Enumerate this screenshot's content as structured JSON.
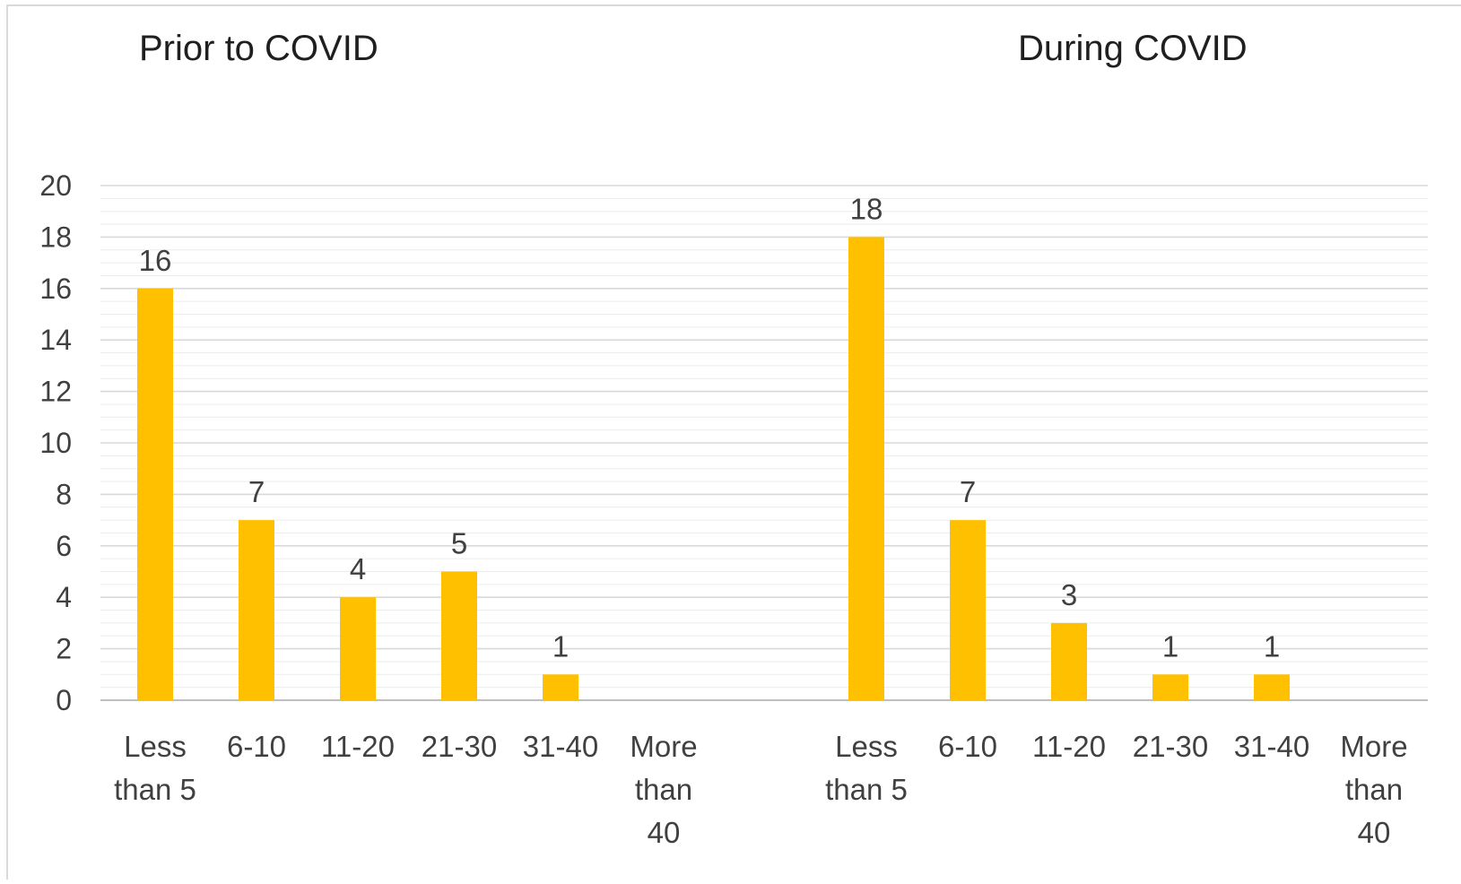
{
  "chart_data": [
    {
      "type": "bar",
      "title": "Prior to COVID",
      "categories": [
        [
          "Less",
          "than 5"
        ],
        [
          "6-10"
        ],
        [
          "11-20"
        ],
        [
          "21-30"
        ],
        [
          "31-40"
        ],
        [
          "More",
          "than",
          "40"
        ]
      ],
      "values": [
        16,
        7,
        4,
        5,
        1,
        0
      ],
      "data_labels": [
        "16",
        "7",
        "4",
        "5",
        "1",
        ""
      ],
      "ylim": [
        0,
        20
      ],
      "yticks": [
        "0",
        "2",
        "4",
        "6",
        "8",
        "10",
        "12",
        "14",
        "16",
        "18",
        "20"
      ],
      "grid": true,
      "bar_color": "#FFC000"
    },
    {
      "type": "bar",
      "title": "During COVID",
      "categories": [
        [
          "Less",
          "than 5"
        ],
        [
          "6-10"
        ],
        [
          "11-20"
        ],
        [
          "21-30"
        ],
        [
          "31-40"
        ],
        [
          "More",
          "than",
          "40"
        ]
      ],
      "values": [
        18,
        7,
        3,
        1,
        1,
        0
      ],
      "data_labels": [
        "18",
        "7",
        "3",
        "1",
        "1",
        ""
      ],
      "ylim": [
        0,
        20
      ],
      "grid": true,
      "bar_color": "#FFC000"
    }
  ],
  "colors": {
    "bar": "#FFC000",
    "gridline": "#d9d9d9",
    "minor_gridline": "#ececec",
    "axis_line": "#bfbfbf",
    "frame_border": "#d9d9d9"
  }
}
